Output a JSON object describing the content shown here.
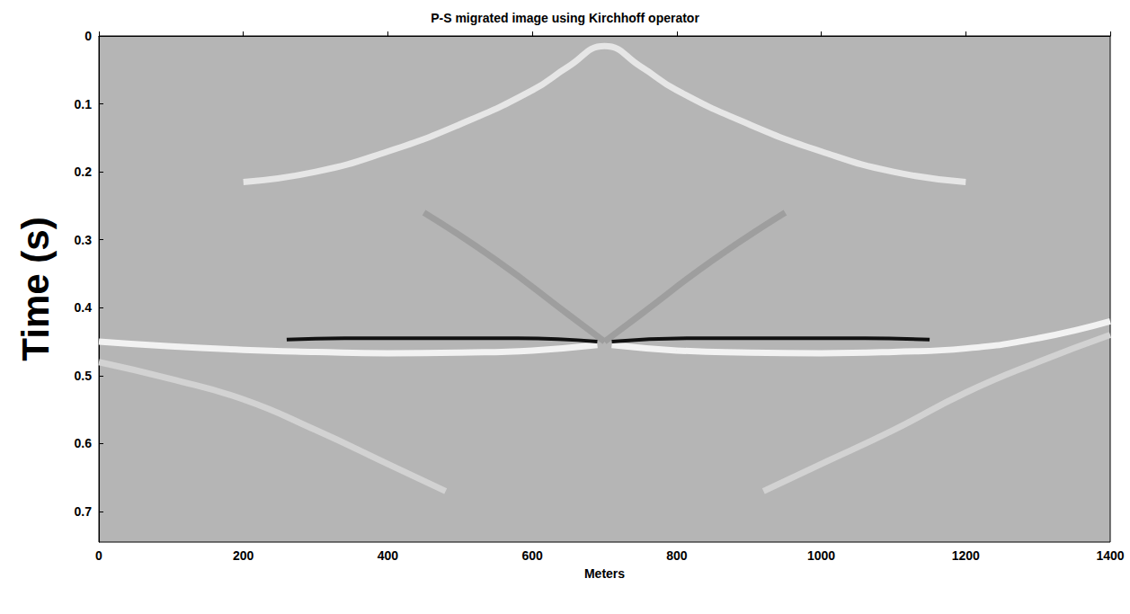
{
  "chart_data": {
    "type": "line",
    "title": "P-S migrated image using Kirchhoff operator",
    "xlabel": "Meters",
    "ylabel": "Time (s)",
    "xlim": [
      0,
      1400
    ],
    "xticks": [
      0,
      200,
      400,
      600,
      800,
      1000,
      1200,
      1400
    ],
    "ylim": [
      0,
      0.745
    ],
    "yticks": [
      0,
      0.1,
      0.2,
      0.3,
      0.4,
      0.5,
      0.6,
      0.7
    ],
    "grid": false,
    "series": [
      {
        "color": "#e6e6e6",
        "line_style": "solid",
        "x": [
          200,
          300,
          400,
          500,
          600,
          650,
          700,
          750,
          800,
          900,
          1000,
          1100,
          1200
        ],
        "values": [
          0.215,
          0.2,
          0.17,
          0.13,
          0.08,
          0.045,
          0.015,
          0.045,
          0.08,
          0.13,
          0.17,
          0.2,
          0.215
        ]
      },
      {
        "color": "#9e9e9e",
        "line_style": "solid",
        "x": [
          450,
          550,
          650,
          700
        ],
        "values": [
          0.26,
          0.33,
          0.41,
          0.45
        ]
      },
      {
        "color": "#9e9e9e",
        "line_style": "solid",
        "x": [
          700,
          750,
          850,
          950
        ],
        "values": [
          0.45,
          0.41,
          0.33,
          0.26
        ]
      },
      {
        "color": "#f2f2f2",
        "line_style": "solid",
        "x": [
          0,
          100,
          200,
          300,
          400,
          500,
          600,
          690
        ],
        "values": [
          0.45,
          0.457,
          0.462,
          0.465,
          0.467,
          0.466,
          0.463,
          0.455
        ]
      },
      {
        "color": "#f2f2f2",
        "line_style": "solid",
        "x": [
          710,
          800,
          900,
          1000,
          1100,
          1200,
          1300,
          1400
        ],
        "values": [
          0.455,
          0.463,
          0.466,
          0.467,
          0.465,
          0.46,
          0.445,
          0.42
        ]
      },
      {
        "color": "#111111",
        "line_style": "solid",
        "x": [
          260,
          340,
          450,
          580,
          690
        ],
        "values": [
          0.447,
          0.445,
          0.445,
          0.445,
          0.45
        ]
      },
      {
        "color": "#111111",
        "line_style": "solid",
        "x": [
          710,
          820,
          950,
          1060,
          1150
        ],
        "values": [
          0.45,
          0.445,
          0.445,
          0.445,
          0.447
        ]
      },
      {
        "color": "#d2d2d2",
        "line_style": "solid",
        "x": [
          0,
          100,
          200,
          300,
          400,
          480
        ],
        "values": [
          0.48,
          0.505,
          0.535,
          0.58,
          0.63,
          0.67
        ]
      },
      {
        "color": "#d2d2d2",
        "line_style": "solid",
        "x": [
          920,
          1000,
          1100,
          1200,
          1300,
          1400
        ],
        "values": [
          0.67,
          0.63,
          0.58,
          0.525,
          0.48,
          0.44
        ]
      }
    ]
  }
}
